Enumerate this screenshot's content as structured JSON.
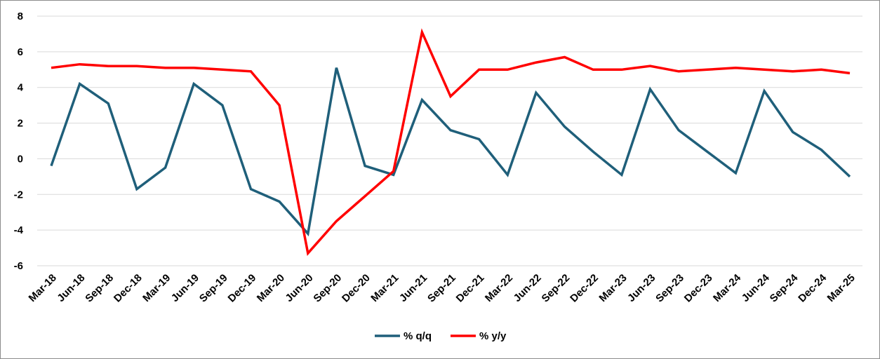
{
  "chart_data": {
    "type": "line",
    "title": "",
    "xlabel": "",
    "ylabel": "",
    "ylim": [
      -6,
      8
    ],
    "yticks": [
      -6,
      -4,
      -2,
      0,
      2,
      4,
      6,
      8
    ],
    "grid": "horizontal",
    "legend": "bottom-center",
    "categories": [
      "Mar-18",
      "Jun-18",
      "Sep-18",
      "Dec-18",
      "Mar-19",
      "Jun-19",
      "Sep-19",
      "Dec-19",
      "Mar-20",
      "Jun-20",
      "Sep-20",
      "Dec-20",
      "Mar-21",
      "Jun-21",
      "Sep-21",
      "Dec-21",
      "Mar-22",
      "Jun-22",
      "Sep-22",
      "Dec-22",
      "Mar-23",
      "Jun-23",
      "Sep-23",
      "Dec-23",
      "Mar-24",
      "Jun-24",
      "Sep-24",
      "Dec-24",
      "Mar-25"
    ],
    "series": [
      {
        "name": "% q/q",
        "color": "#1f5f7a",
        "values": [
          -0.4,
          4.2,
          3.1,
          -1.7,
          -0.5,
          4.2,
          3.0,
          -1.7,
          -2.4,
          -4.2,
          5.1,
          -0.4,
          -0.9,
          3.3,
          1.6,
          1.1,
          -0.9,
          3.7,
          1.8,
          0.4,
          -0.9,
          3.9,
          1.6,
          0.4,
          -0.8,
          3.8,
          1.5,
          0.5,
          -1.0
        ]
      },
      {
        "name": "% y/y",
        "color": "#ff0000",
        "values": [
          5.1,
          5.3,
          5.2,
          5.2,
          5.1,
          5.1,
          5.0,
          4.9,
          3.0,
          -5.3,
          -3.5,
          -2.1,
          -0.7,
          7.1,
          3.5,
          5.0,
          5.0,
          5.4,
          5.7,
          5.0,
          5.0,
          5.2,
          4.9,
          5.0,
          5.1,
          5.0,
          4.9,
          5.0,
          4.8
        ]
      }
    ]
  }
}
